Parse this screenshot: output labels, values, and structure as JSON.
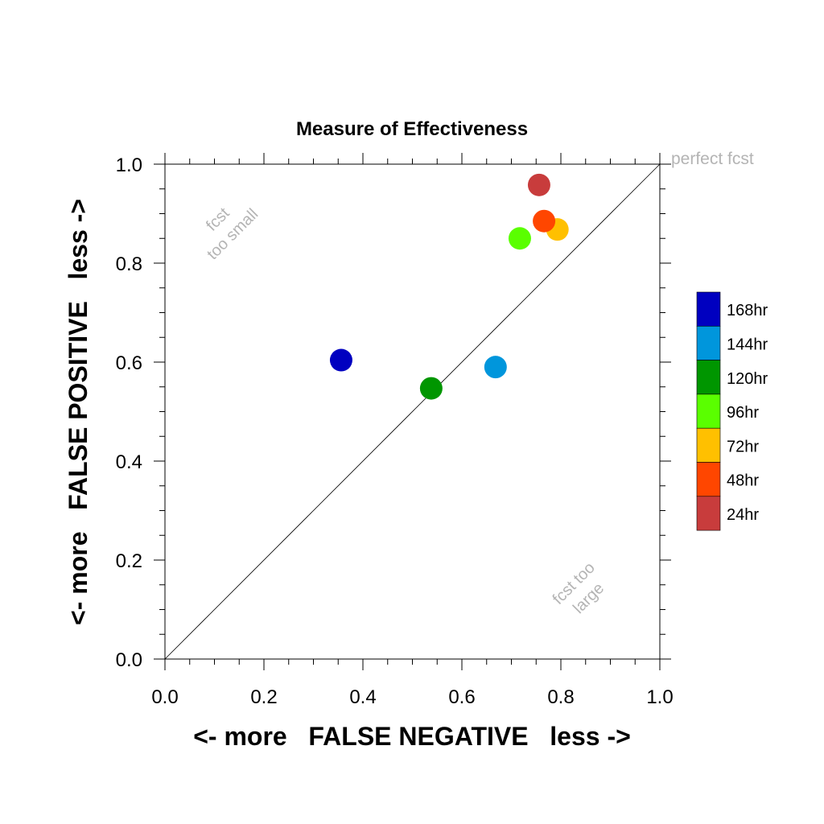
{
  "chart_data": {
    "type": "scatter",
    "title": "Measure of Effectiveness",
    "xlabel": "<- more   FALSE NEGATIVE   less ->",
    "ylabel": "<- more   FALSE POSITIVE   less ->",
    "xlim": [
      0.0,
      1.0
    ],
    "ylim": [
      0.0,
      1.0
    ],
    "x_tick_labels": [
      "0.0",
      "0.2",
      "0.4",
      "0.6",
      "0.8",
      "1.0"
    ],
    "y_tick_labels": [
      "0.0",
      "0.2",
      "0.4",
      "0.6",
      "0.8",
      "1.0"
    ],
    "grid": false,
    "reference_line": {
      "from": [
        0,
        0
      ],
      "to": [
        1,
        1
      ]
    },
    "annotations": {
      "perfect": "perfect fcst",
      "too_small_line1": "fcst",
      "too_small_line2": "too small",
      "too_large_line1": "fcst too",
      "too_large_line2": "large"
    },
    "legend_placement": "right",
    "series": [
      {
        "name": "168hr",
        "color": "#0000c0",
        "x": 0.356,
        "y": 0.604
      },
      {
        "name": "144hr",
        "color": "#0096dc",
        "x": 0.668,
        "y": 0.59
      },
      {
        "name": "120hr",
        "color": "#009600",
        "x": 0.538,
        "y": 0.547
      },
      {
        "name": "96hr",
        "color": "#5aff00",
        "x": 0.717,
        "y": 0.85
      },
      {
        "name": "72hr",
        "color": "#ffc000",
        "x": 0.793,
        "y": 0.868
      },
      {
        "name": "48hr",
        "color": "#ff4600",
        "x": 0.766,
        "y": 0.885
      },
      {
        "name": "24hr",
        "color": "#c83c3c",
        "x": 0.756,
        "y": 0.958
      }
    ]
  }
}
